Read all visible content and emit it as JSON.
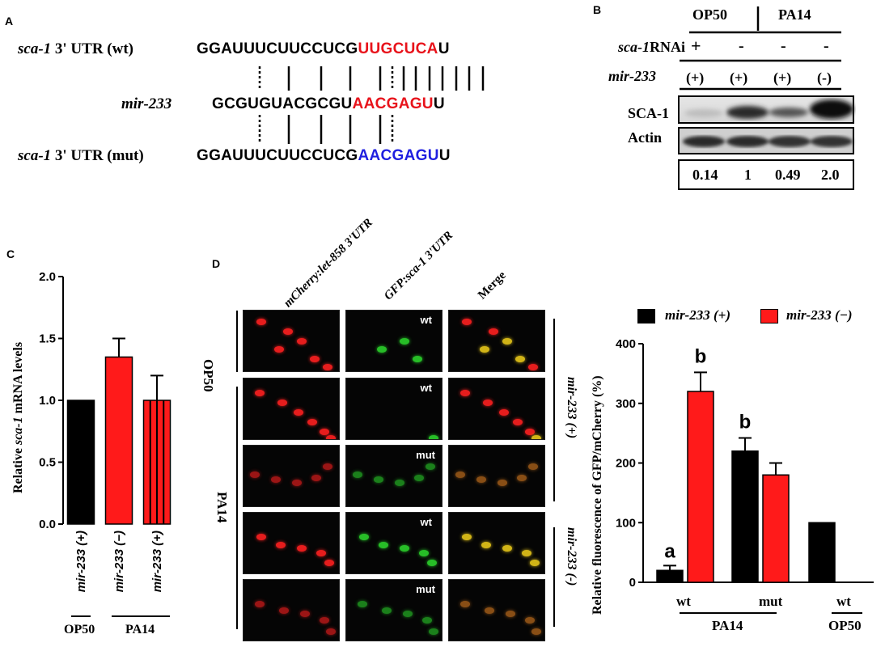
{
  "panels": {
    "a": "A",
    "b": "B",
    "c": "C",
    "d": "D"
  },
  "panel_a": {
    "wt_gene": "sca-1",
    "wt_suffix": " 3' UTR (wt)",
    "wt_seq_black": "GGAUUUCUUCCUCG",
    "wt_seq_red": "UUGCUCA",
    "wt_seq_end": "U",
    "mir_label": "mir-233",
    "mir_seq_black": "GCGUGUACGCGU",
    "mir_seq_red": "AACGAGU",
    "mir_seq_end": "U",
    "mut_gene": "sca-1",
    "mut_suffix": " 3' UTR (mut)",
    "mut_seq_black": "GGAUUUCUUCCUCG",
    "mut_seq_blue": "AACGAGU",
    "mut_seq_end": "U"
  },
  "panel_b": {
    "op50": "OP50",
    "pa14": "PA14",
    "rnai_gene": "sca-1",
    "rnai_suffix": "RNAi",
    "rnai_signs": [
      "+",
      "-",
      "-",
      "-"
    ],
    "mir_label": "mir-233",
    "mir_signs": [
      "(+)",
      "(+)",
      "(+)",
      "(-)"
    ],
    "sca1_label": "SCA-1",
    "actin_label": "Actin",
    "ratios": [
      "0.14",
      "1",
      "0.49",
      "2.0"
    ]
  },
  "panel_c": {
    "ylabel_pre": "Relative ",
    "ylabel_gene": "sca-1",
    "ylabel_post": " mRNA levels",
    "yticks": [
      "0.0",
      "0.5",
      "1.0",
      "1.5",
      "2.0"
    ],
    "group_op50": "OP50",
    "group_pa14": "PA14"
  },
  "panel_d": {
    "col_labels": [
      "mCherry:let-858 3'UTR",
      "GFP:sca-1 3'UTR",
      "Merge"
    ],
    "row_op50": "OP50",
    "row_pa14": "PA14",
    "side_plus": "mir-233 (+)",
    "side_minus": "mir-233 (-)",
    "cell_tags": [
      "wt",
      "wt",
      "mut",
      "wt",
      "mut"
    ],
    "legend": [
      "mir-233 (+)",
      "mir-233 (−)"
    ],
    "ylabel": "Relative fluorescence of GFP/mCherry (%)",
    "yticks": [
      "0",
      "100",
      "200",
      "300",
      "400"
    ],
    "group_pa14": "PA14",
    "group_op50": "OP50",
    "sig_letters": [
      "a",
      "b",
      "b"
    ]
  },
  "chart_data": [
    {
      "type": "bar",
      "categories": [
        "mir-233 (+)",
        "mir-233 (−)",
        "mir-233 (+)"
      ],
      "groups": [
        "OP50",
        "PA14",
        "PA14"
      ],
      "values": [
        1.0,
        1.35,
        1.0
      ],
      "errors": [
        0,
        0.15,
        0.2
      ],
      "colors": [
        "#000000",
        "#ff1a1a",
        "#ff1a1a"
      ],
      "ylabel": "Relative sca-1 mRNA levels",
      "ylim": [
        0,
        2.0
      ]
    },
    {
      "type": "bar",
      "categories": [
        "wt",
        "mut",
        "wt"
      ],
      "groups": [
        "PA14",
        "PA14",
        "OP50"
      ],
      "series": [
        {
          "name": "mir-233 (+)",
          "color": "#000000",
          "values": [
            20,
            220,
            100
          ],
          "errors": [
            8,
            22,
            0
          ]
        },
        {
          "name": "mir-233 (−)",
          "color": "#ff1a1a",
          "values": [
            320,
            180,
            null
          ],
          "errors": [
            32,
            20,
            null
          ]
        }
      ],
      "ylabel": "Relative fluorescence of GFP/mCherry (%)",
      "ylim": [
        0,
        400
      ]
    }
  ]
}
